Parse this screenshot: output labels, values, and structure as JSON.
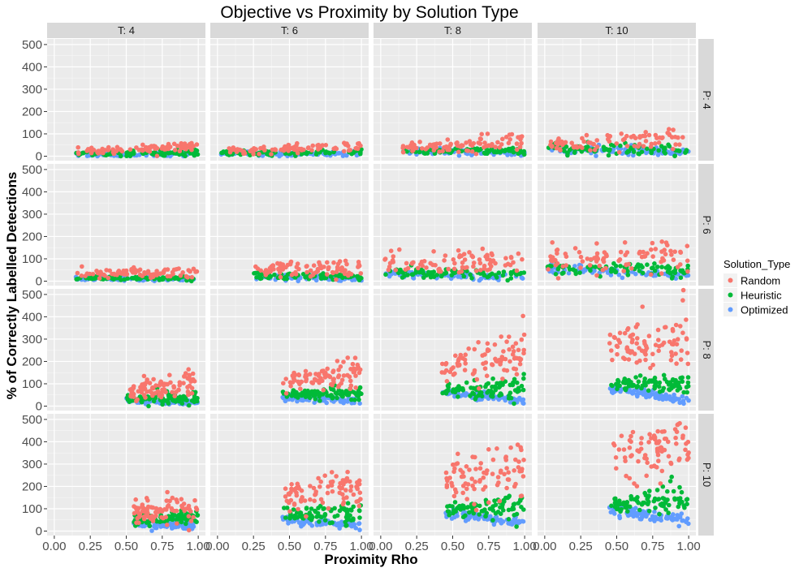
{
  "chart_data": {
    "type": "scatter",
    "title": "Objective vs Proximity by Solution Type",
    "xlabel": "Proximity Rho",
    "ylabel": "% of Correctly Labelled Detections",
    "xlim": [
      -0.05,
      1.05
    ],
    "ylim": [
      -20,
      525
    ],
    "x_ticks": [
      "0.00",
      "0.25",
      "0.50",
      "0.75",
      "1.00"
    ],
    "y_ticks": [
      "0",
      "100",
      "200",
      "300",
      "400",
      "500"
    ],
    "grid": true,
    "legend_position": "right",
    "legend_title": "Solution_Type",
    "col_facet_labels": [
      "T: 4",
      "T: 6",
      "T: 8",
      "T: 10"
    ],
    "row_facet_labels": [
      "P: 4",
      "P: 6",
      "P: 8",
      "P: 10"
    ],
    "series": [
      {
        "name": "Random",
        "color": "#F8766D"
      },
      {
        "name": "Heuristic",
        "color": "#00BA38"
      },
      {
        "name": "Optimized",
        "color": "#619CFF"
      }
    ],
    "panels": [
      {
        "row": 0,
        "col": 0,
        "x_min": 0.15,
        "x_max": 1.0,
        "random": [
          [
            25,
            10
          ],
          [
            45,
            10
          ]
        ],
        "heuristic": [
          [
            12,
            6
          ],
          [
            15,
            6
          ]
        ],
        "optimized": [
          [
            8,
            5
          ],
          [
            8,
            5
          ]
        ]
      },
      {
        "row": 0,
        "col": 1,
        "x_min": 0.02,
        "x_max": 1.0,
        "random": [
          [
            20,
            8
          ],
          [
            45,
            12
          ]
        ],
        "heuristic": [
          [
            15,
            6
          ],
          [
            18,
            6
          ]
        ],
        "optimized": [
          [
            12,
            5
          ],
          [
            10,
            5
          ]
        ]
      },
      {
        "row": 0,
        "col": 2,
        "x_min": 0.15,
        "x_max": 1.0,
        "random": [
          [
            35,
            10
          ],
          [
            70,
            25
          ]
        ],
        "heuristic": [
          [
            25,
            8
          ],
          [
            25,
            8
          ]
        ],
        "optimized": [
          [
            25,
            8
          ],
          [
            15,
            6
          ]
        ]
      },
      {
        "row": 0,
        "col": 3,
        "x_min": 0.02,
        "x_max": 1.0,
        "random": [
          [
            50,
            15
          ],
          [
            80,
            30
          ]
        ],
        "heuristic": [
          [
            35,
            10
          ],
          [
            25,
            10
          ]
        ],
        "optimized": [
          [
            30,
            8
          ],
          [
            20,
            8
          ]
        ]
      },
      {
        "row": 1,
        "col": 0,
        "x_min": 0.15,
        "x_max": 1.0,
        "random": [
          [
            30,
            10
          ],
          [
            40,
            15
          ]
        ],
        "heuristic": [
          [
            15,
            5
          ],
          [
            12,
            5
          ]
        ],
        "optimized": [
          [
            12,
            4
          ],
          [
            8,
            4
          ]
        ]
      },
      {
        "row": 1,
        "col": 1,
        "x_min": 0.25,
        "x_max": 1.0,
        "random": [
          [
            50,
            15
          ],
          [
            60,
            20
          ]
        ],
        "heuristic": [
          [
            25,
            8
          ],
          [
            20,
            8
          ]
        ],
        "optimized": [
          [
            20,
            6
          ],
          [
            12,
            5
          ]
        ]
      },
      {
        "row": 1,
        "col": 2,
        "x_min": 0.02,
        "x_max": 1.0,
        "random": [
          [
            75,
            25
          ],
          [
            90,
            25
          ]
        ],
        "heuristic": [
          [
            40,
            10
          ],
          [
            35,
            10
          ]
        ],
        "optimized": [
          [
            35,
            8
          ],
          [
            15,
            6
          ]
        ]
      },
      {
        "row": 1,
        "col": 3,
        "x_min": 0.02,
        "x_max": 1.0,
        "random": [
          [
            100,
            30
          ],
          [
            120,
            40
          ]
        ],
        "heuristic": [
          [
            60,
            15
          ],
          [
            50,
            15
          ]
        ],
        "optimized": [
          [
            55,
            10
          ],
          [
            25,
            8
          ]
        ]
      },
      {
        "row": 2,
        "col": 0,
        "x_min": 0.5,
        "x_max": 1.0,
        "random": [
          [
            60,
            20
          ],
          [
            100,
            35
          ]
        ],
        "heuristic": [
          [
            30,
            10
          ],
          [
            40,
            15
          ]
        ],
        "optimized": [
          [
            25,
            6
          ],
          [
            15,
            6
          ]
        ]
      },
      {
        "row": 2,
        "col": 1,
        "x_min": 0.45,
        "x_max": 1.0,
        "random": [
          [
            110,
            20
          ],
          [
            160,
            40
          ]
        ],
        "heuristic": [
          [
            50,
            12
          ],
          [
            55,
            15
          ]
        ],
        "optimized": [
          [
            40,
            8
          ],
          [
            20,
            8
          ]
        ]
      },
      {
        "row": 2,
        "col": 2,
        "x_min": 0.42,
        "x_max": 1.0,
        "random": [
          [
            170,
            35
          ],
          [
            240,
            60
          ]
        ],
        "heuristic": [
          [
            70,
            12
          ],
          [
            80,
            25
          ]
        ],
        "optimized": [
          [
            60,
            8
          ],
          [
            25,
            8
          ]
        ]
      },
      {
        "row": 2,
        "col": 3,
        "x_min": 0.45,
        "x_max": 1.0,
        "random": [
          [
            270,
            40
          ],
          [
            300,
            70
          ]
        ],
        "heuristic": [
          [
            100,
            15
          ],
          [
            100,
            25
          ]
        ],
        "optimized": [
          [
            75,
            10
          ],
          [
            30,
            10
          ]
        ]
      },
      {
        "row": 3,
        "col": 0,
        "x_min": 0.55,
        "x_max": 1.0,
        "random": [
          [
            80,
            25
          ],
          [
            110,
            35
          ]
        ],
        "heuristic": [
          [
            50,
            15
          ],
          [
            60,
            15
          ]
        ],
        "optimized": [
          [
            30,
            8
          ],
          [
            20,
            8
          ]
        ]
      },
      {
        "row": 3,
        "col": 1,
        "x_min": 0.45,
        "x_max": 1.0,
        "random": [
          [
            150,
            30
          ],
          [
            200,
            50
          ]
        ],
        "heuristic": [
          [
            70,
            15
          ],
          [
            85,
            25
          ]
        ],
        "optimized": [
          [
            50,
            10
          ],
          [
            25,
            8
          ]
        ]
      },
      {
        "row": 3,
        "col": 2,
        "x_min": 0.45,
        "x_max": 1.0,
        "random": [
          [
            210,
            50
          ],
          [
            280,
            60
          ]
        ],
        "heuristic": [
          [
            95,
            15
          ],
          [
            110,
            30
          ]
        ],
        "optimized": [
          [
            80,
            10
          ],
          [
            35,
            10
          ]
        ]
      },
      {
        "row": 3,
        "col": 3,
        "x_min": 0.45,
        "x_max": 1.0,
        "random": [
          [
            300,
            50
          ],
          [
            390,
            70
          ]
        ],
        "heuristic": [
          [
            125,
            20
          ],
          [
            140,
            40
          ]
        ],
        "optimized": [
          [
            95,
            12
          ],
          [
            45,
            12
          ]
        ]
      }
    ]
  }
}
